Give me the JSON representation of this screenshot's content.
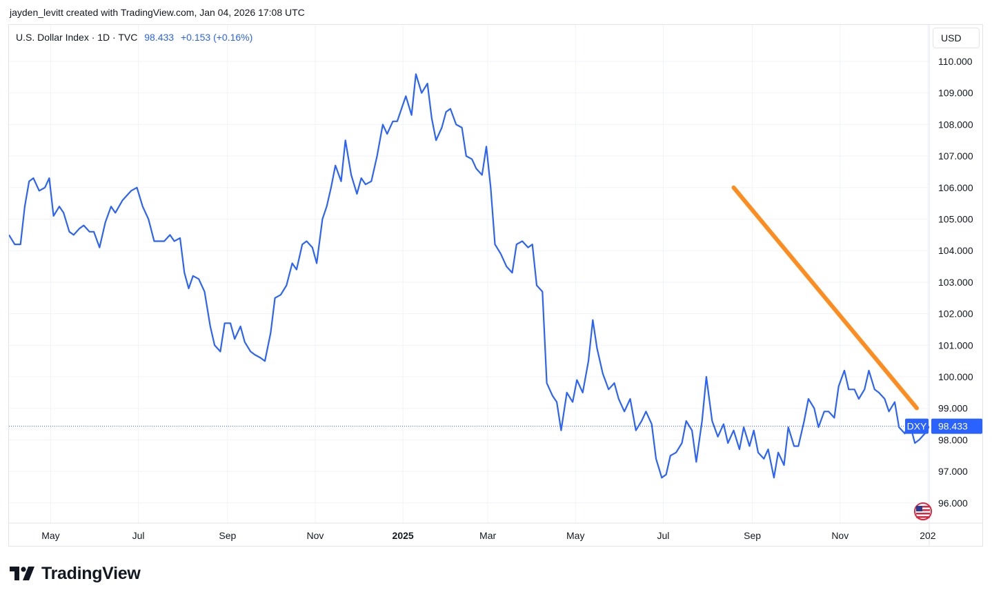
{
  "header": {
    "attribution": "jayden_levitt created with TradingView.com, Jan 04, 2026 17:08 UTC"
  },
  "legend": {
    "symbol": "U.S. Dollar Index · 1D · TVC",
    "price": "98.433",
    "change": "+0.153 (+0.16%)"
  },
  "toolbar": {
    "currency": "USD"
  },
  "footer": {
    "brand": "TradingView"
  },
  "colors": {
    "line": "#2962ff",
    "trend": "#ff8c1f",
    "grid": "#f0f3fa",
    "label_bg": "#2962ff"
  },
  "icons": {
    "flag": "us-flag-icon",
    "logo": "tradingview-logo-icon"
  },
  "chart_data": {
    "type": "line",
    "title": "U.S. Dollar Index",
    "ylabel": "",
    "ylim": [
      95.3,
      110.45
    ],
    "y_ticks": [
      "110.000",
      "109.000",
      "108.000",
      "107.000",
      "106.000",
      "105.000",
      "104.000",
      "103.000",
      "102.000",
      "101.000",
      "100.000",
      "99.000",
      "98.000",
      "97.000",
      "96.000"
    ],
    "x_ticks": [
      {
        "label": "May",
        "date": "2024-05-01",
        "bold": false
      },
      {
        "label": "Jul",
        "date": "2024-07-01",
        "bold": false
      },
      {
        "label": "Sep",
        "date": "2024-09-01",
        "bold": false
      },
      {
        "label": "Nov",
        "date": "2024-11-01",
        "bold": false
      },
      {
        "label": "2025",
        "date": "2025-01-01",
        "bold": true
      },
      {
        "label": "Mar",
        "date": "2025-03-01",
        "bold": false
      },
      {
        "label": "May",
        "date": "2025-05-01",
        "bold": false
      },
      {
        "label": "Jul",
        "date": "2025-07-01",
        "bold": false
      },
      {
        "label": "Sep",
        "date": "2025-09-01",
        "bold": false
      },
      {
        "label": "Nov",
        "date": "2025-11-01",
        "bold": false
      },
      {
        "label": "202",
        "date": "2026-01-01",
        "bold": false
      }
    ],
    "xlim": [
      "2024-04-02",
      "2026-01-02"
    ],
    "series": [
      {
        "name": "DXY",
        "points": [
          [
            "2024-04-02",
            104.5
          ],
          [
            "2024-04-06",
            104.2
          ],
          [
            "2024-04-10",
            104.2
          ],
          [
            "2024-04-13",
            105.4
          ],
          [
            "2024-04-16",
            106.2
          ],
          [
            "2024-04-19",
            106.3
          ],
          [
            "2024-04-23",
            105.9
          ],
          [
            "2024-04-27",
            106.0
          ],
          [
            "2024-04-30",
            106.3
          ],
          [
            "2024-05-03",
            105.1
          ],
          [
            "2024-05-07",
            105.4
          ],
          [
            "2024-05-10",
            105.2
          ],
          [
            "2024-05-14",
            104.6
          ],
          [
            "2024-05-17",
            104.5
          ],
          [
            "2024-05-21",
            104.7
          ],
          [
            "2024-05-24",
            104.8
          ],
          [
            "2024-05-28",
            104.6
          ],
          [
            "2024-05-31",
            104.6
          ],
          [
            "2024-06-04",
            104.1
          ],
          [
            "2024-06-08",
            104.9
          ],
          [
            "2024-06-12",
            105.4
          ],
          [
            "2024-06-15",
            105.2
          ],
          [
            "2024-06-20",
            105.6
          ],
          [
            "2024-06-26",
            105.9
          ],
          [
            "2024-06-30",
            106.0
          ],
          [
            "2024-07-04",
            105.4
          ],
          [
            "2024-07-08",
            105.0
          ],
          [
            "2024-07-12",
            104.3
          ],
          [
            "2024-07-16",
            104.3
          ],
          [
            "2024-07-19",
            104.3
          ],
          [
            "2024-07-23",
            104.5
          ],
          [
            "2024-07-26",
            104.3
          ],
          [
            "2024-07-30",
            104.4
          ],
          [
            "2024-08-02",
            103.3
          ],
          [
            "2024-08-05",
            102.8
          ],
          [
            "2024-08-08",
            103.2
          ],
          [
            "2024-08-12",
            103.1
          ],
          [
            "2024-08-16",
            102.7
          ],
          [
            "2024-08-20",
            101.6
          ],
          [
            "2024-08-23",
            101.0
          ],
          [
            "2024-08-27",
            100.8
          ],
          [
            "2024-08-30",
            101.7
          ],
          [
            "2024-09-03",
            101.7
          ],
          [
            "2024-09-06",
            101.2
          ],
          [
            "2024-09-10",
            101.6
          ],
          [
            "2024-09-13",
            101.1
          ],
          [
            "2024-09-17",
            100.8
          ],
          [
            "2024-09-20",
            100.7
          ],
          [
            "2024-09-24",
            100.6
          ],
          [
            "2024-09-27",
            100.5
          ],
          [
            "2024-10-01",
            101.4
          ],
          [
            "2024-10-04",
            102.5
          ],
          [
            "2024-10-08",
            102.6
          ],
          [
            "2024-10-12",
            102.9
          ],
          [
            "2024-10-16",
            103.6
          ],
          [
            "2024-10-19",
            103.4
          ],
          [
            "2024-10-23",
            104.2
          ],
          [
            "2024-10-26",
            104.3
          ],
          [
            "2024-10-30",
            104.1
          ],
          [
            "2024-11-02",
            103.6
          ],
          [
            "2024-11-06",
            105.0
          ],
          [
            "2024-11-09",
            105.4
          ],
          [
            "2024-11-12",
            106.0
          ],
          [
            "2024-11-15",
            106.7
          ],
          [
            "2024-11-19",
            106.2
          ],
          [
            "2024-11-22",
            107.5
          ],
          [
            "2024-11-26",
            106.4
          ],
          [
            "2024-11-30",
            105.8
          ],
          [
            "2024-12-03",
            106.3
          ],
          [
            "2024-12-06",
            106.1
          ],
          [
            "2024-12-10",
            106.2
          ],
          [
            "2024-12-14",
            107.0
          ],
          [
            "2024-12-18",
            108.0
          ],
          [
            "2024-12-21",
            107.7
          ],
          [
            "2024-12-25",
            108.1
          ],
          [
            "2024-12-28",
            108.1
          ],
          [
            "2024-12-31",
            108.5
          ],
          [
            "2025-01-03",
            108.9
          ],
          [
            "2025-01-07",
            108.3
          ],
          [
            "2025-01-10",
            109.6
          ],
          [
            "2025-01-14",
            109.0
          ],
          [
            "2025-01-18",
            109.3
          ],
          [
            "2025-01-21",
            108.2
          ],
          [
            "2025-01-24",
            107.5
          ],
          [
            "2025-01-28",
            107.9
          ],
          [
            "2025-01-31",
            108.4
          ],
          [
            "2025-02-03",
            108.5
          ],
          [
            "2025-02-07",
            108.0
          ],
          [
            "2025-02-11",
            107.9
          ],
          [
            "2025-02-14",
            107.0
          ],
          [
            "2025-02-18",
            106.9
          ],
          [
            "2025-02-21",
            106.6
          ],
          [
            "2025-02-25",
            106.4
          ],
          [
            "2025-02-28",
            107.3
          ],
          [
            "2025-03-03",
            106.0
          ],
          [
            "2025-03-06",
            104.2
          ],
          [
            "2025-03-10",
            103.9
          ],
          [
            "2025-03-14",
            103.5
          ],
          [
            "2025-03-18",
            103.3
          ],
          [
            "2025-03-21",
            104.2
          ],
          [
            "2025-03-25",
            104.3
          ],
          [
            "2025-03-29",
            104.1
          ],
          [
            "2025-04-01",
            104.2
          ],
          [
            "2025-04-04",
            102.9
          ],
          [
            "2025-04-08",
            102.7
          ],
          [
            "2025-04-11",
            99.8
          ],
          [
            "2025-04-15",
            99.4
          ],
          [
            "2025-04-18",
            99.2
          ],
          [
            "2025-04-21",
            98.3
          ],
          [
            "2025-04-25",
            99.5
          ],
          [
            "2025-04-29",
            99.2
          ],
          [
            "2025-05-02",
            99.9
          ],
          [
            "2025-05-06",
            99.5
          ],
          [
            "2025-05-10",
            100.5
          ],
          [
            "2025-05-13",
            101.8
          ],
          [
            "2025-05-16",
            100.9
          ],
          [
            "2025-05-20",
            100.1
          ],
          [
            "2025-05-24",
            99.6
          ],
          [
            "2025-05-28",
            99.8
          ],
          [
            "2025-05-31",
            99.3
          ],
          [
            "2025-06-04",
            98.9
          ],
          [
            "2025-06-08",
            99.3
          ],
          [
            "2025-06-12",
            98.3
          ],
          [
            "2025-06-16",
            98.6
          ],
          [
            "2025-06-19",
            98.9
          ],
          [
            "2025-06-23",
            98.5
          ],
          [
            "2025-06-26",
            97.4
          ],
          [
            "2025-06-30",
            96.8
          ],
          [
            "2025-07-03",
            96.9
          ],
          [
            "2025-07-06",
            97.5
          ],
          [
            "2025-07-10",
            97.6
          ],
          [
            "2025-07-14",
            97.9
          ],
          [
            "2025-07-17",
            98.6
          ],
          [
            "2025-07-21",
            98.3
          ],
          [
            "2025-07-24",
            97.3
          ],
          [
            "2025-07-28",
            98.6
          ],
          [
            "2025-07-31",
            100.0
          ],
          [
            "2025-08-04",
            98.6
          ],
          [
            "2025-08-08",
            98.1
          ],
          [
            "2025-08-12",
            98.5
          ],
          [
            "2025-08-15",
            97.9
          ],
          [
            "2025-08-19",
            98.3
          ],
          [
            "2025-08-23",
            97.7
          ],
          [
            "2025-08-26",
            98.4
          ],
          [
            "2025-08-30",
            97.8
          ],
          [
            "2025-09-02",
            98.3
          ],
          [
            "2025-09-05",
            97.6
          ],
          [
            "2025-09-09",
            97.4
          ],
          [
            "2025-09-12",
            97.7
          ],
          [
            "2025-09-16",
            96.8
          ],
          [
            "2025-09-19",
            97.6
          ],
          [
            "2025-09-23",
            97.2
          ],
          [
            "2025-09-26",
            98.4
          ],
          [
            "2025-09-30",
            97.8
          ],
          [
            "2025-10-03",
            97.8
          ],
          [
            "2025-10-07",
            98.6
          ],
          [
            "2025-10-10",
            99.3
          ],
          [
            "2025-10-14",
            99.0
          ],
          [
            "2025-10-17",
            98.4
          ],
          [
            "2025-10-21",
            98.9
          ],
          [
            "2025-10-24",
            98.9
          ],
          [
            "2025-10-28",
            98.7
          ],
          [
            "2025-10-31",
            99.7
          ],
          [
            "2025-11-04",
            100.2
          ],
          [
            "2025-11-07",
            99.6
          ],
          [
            "2025-11-11",
            99.6
          ],
          [
            "2025-11-14",
            99.3
          ],
          [
            "2025-11-18",
            99.6
          ],
          [
            "2025-11-21",
            100.2
          ],
          [
            "2025-11-25",
            99.6
          ],
          [
            "2025-11-28",
            99.5
          ],
          [
            "2025-12-02",
            99.3
          ],
          [
            "2025-12-05",
            98.9
          ],
          [
            "2025-12-09",
            99.2
          ],
          [
            "2025-12-12",
            98.4
          ],
          [
            "2025-12-16",
            98.2
          ],
          [
            "2025-12-19",
            98.6
          ],
          [
            "2025-12-23",
            97.9
          ],
          [
            "2025-12-26",
            98.0
          ],
          [
            "2025-12-30",
            98.2
          ],
          [
            "2026-01-02",
            98.43
          ]
        ]
      }
    ],
    "trendline": {
      "start": [
        "2025-08-19",
        106.0
      ],
      "end": [
        "2026-01-02",
        98.7
      ]
    },
    "last_price": {
      "value": 98.433,
      "label": "98.433",
      "symbol": "DXY"
    }
  }
}
